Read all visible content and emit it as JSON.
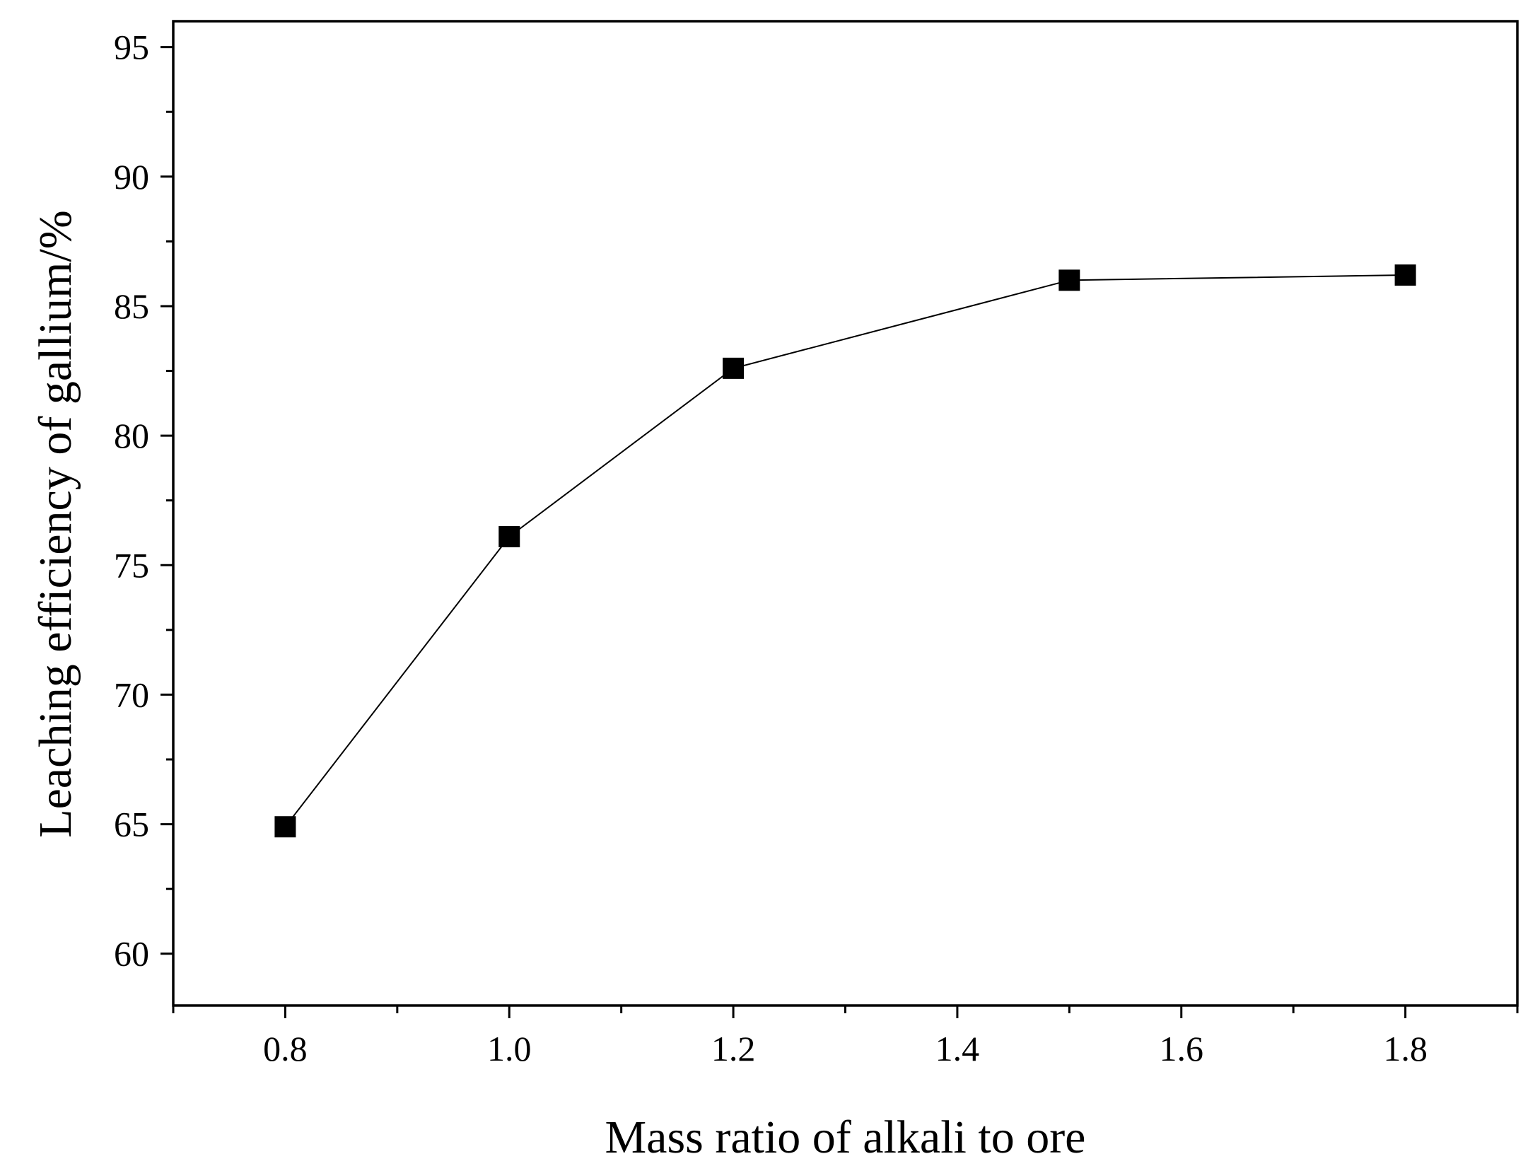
{
  "chart_data": {
    "type": "line",
    "title": "",
    "xlabel": "Mass ratio of alkali to ore",
    "ylabel": "Leaching efficiency of gallium/%",
    "xlim": [
      0.7,
      1.9
    ],
    "ylim": [
      58,
      96
    ],
    "x_ticks": [
      0.8,
      1.0,
      1.2,
      1.4,
      1.6,
      1.8
    ],
    "x_tick_labels": [
      "0.8",
      "1.0",
      "1.2",
      "1.4",
      "1.6",
      "1.8"
    ],
    "x_minor_ticks": [
      0.7,
      0.9,
      1.1,
      1.3,
      1.5,
      1.7,
      1.9
    ],
    "y_ticks": [
      60,
      65,
      70,
      75,
      80,
      85,
      90,
      95
    ],
    "y_tick_labels": [
      "60",
      "65",
      "70",
      "75",
      "80",
      "85",
      "90",
      "95"
    ],
    "y_minor_ticks": [
      62.5,
      67.5,
      72.5,
      77.5,
      82.5,
      87.5,
      92.5
    ],
    "grid": false,
    "legend": "none",
    "series": [
      {
        "name": "Leaching efficiency",
        "marker": "square",
        "color": "#000000",
        "x": [
          0.8,
          1.0,
          1.2,
          1.5,
          1.8
        ],
        "values": [
          64.9,
          76.1,
          82.6,
          86.0,
          86.2
        ]
      }
    ]
  }
}
